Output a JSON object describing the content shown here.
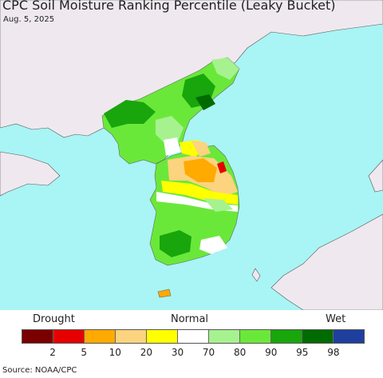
{
  "title": "CPC Soil Moisture Ranking Percentile (Leaky Bucket)",
  "date": "Aug. 5, 2025",
  "legend": {
    "left_label": "Drought",
    "center_label": "Normal",
    "right_label": "Wet",
    "colors": [
      "#7a0000",
      "#e60000",
      "#ffaa00",
      "#fcd37f",
      "#ffff00",
      "#ffffff",
      "#a6f28f",
      "#6ae83a",
      "#19a50c",
      "#006b00",
      "#1e3f9e"
    ],
    "ticks": [
      "2",
      "5",
      "10",
      "20",
      "30",
      "70",
      "80",
      "90",
      "95",
      "98"
    ]
  },
  "source": "Source: NOAA/CPC",
  "colors": {
    "ocean": "#a9f4f4",
    "land_other": "#efe9ef"
  }
}
